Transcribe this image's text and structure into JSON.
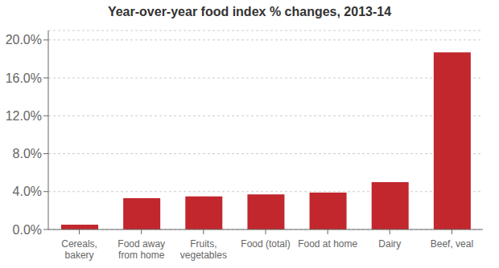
{
  "chart_data": {
    "type": "bar",
    "title": "Year-over-year food index % changes, 2013-14",
    "categories": [
      "Cereals,\nbakery",
      "Food away\nfrom home",
      "Fruits,\nvegetables",
      "Food (total)",
      "Food at home",
      "Dairy",
      "Beef, veal"
    ],
    "values": [
      0.005,
      0.033,
      0.035,
      0.037,
      0.039,
      0.05,
      0.187
    ],
    "color": "#C1272D",
    "ylim": [
      0,
      0.21
    ],
    "yticks": [
      {
        "value": 0.0,
        "label": "0.0%"
      },
      {
        "value": 0.04,
        "label": "4.0%"
      },
      {
        "value": 0.08,
        "label": "8.0%"
      },
      {
        "value": 0.12,
        "label": "12.0%"
      },
      {
        "value": 0.16,
        "label": "16.0%"
      },
      {
        "value": 0.2,
        "label": "20.0%"
      }
    ],
    "grid": true
  }
}
